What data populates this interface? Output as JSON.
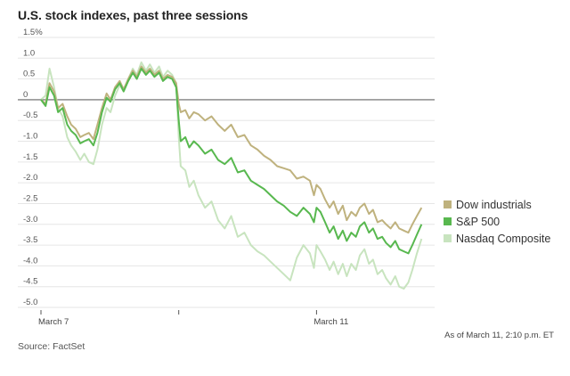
{
  "header": {
    "title": "U.S. stock indexes, past three sessions"
  },
  "footer": {
    "as_of": "As of March 11, 2:10 p.m. ET",
    "source": "Source: FactSet"
  },
  "chart_data": {
    "type": "line",
    "title": "U.S. stock indexes, past three sessions",
    "xlabel": "",
    "ylabel": "",
    "ylim": [
      -5.0,
      1.5
    ],
    "yticks": [
      1.5,
      1.0,
      0.5,
      0,
      -0.5,
      -1.0,
      -1.5,
      -2.0,
      -2.5,
      -3.0,
      -3.5,
      -4.0,
      -4.5,
      -5.0
    ],
    "ytick_labels": [
      "1.5%",
      "1.0",
      "0.5",
      "0",
      "-0.5",
      "-1.0",
      "-1.5",
      "-2.0",
      "-2.5",
      "-3.0",
      "-3.5",
      "-4.0",
      "-4.5",
      "-5.0"
    ],
    "xlim": [
      0,
      60
    ],
    "xticks": [
      {
        "x": 0,
        "label": "March 7"
      },
      {
        "x": 21,
        "label": ""
      },
      {
        "x": 42,
        "label": "March 11"
      }
    ],
    "zero_line": true,
    "grid": "horizontal",
    "legend": "right",
    "series": [
      {
        "name": "Dow industrials",
        "color": "#bfb27e",
        "x": [
          0,
          0.7,
          1.3,
          2,
          2.6,
          3.3,
          4,
          4.6,
          5.3,
          6,
          6.6,
          7.3,
          8,
          8.6,
          9.3,
          10,
          10.6,
          11.3,
          12,
          12.6,
          13.3,
          14,
          14.6,
          15.3,
          16,
          16.6,
          17.3,
          18,
          18.6,
          19.3,
          20,
          20.6,
          21,
          21.3,
          22,
          22.6,
          23.3,
          24,
          25,
          26,
          27,
          28,
          29,
          30,
          31,
          32,
          33,
          34,
          35,
          36,
          37,
          38,
          39,
          40,
          41,
          41.6,
          42,
          42.6,
          43.3,
          44,
          44.6,
          45.3,
          46,
          46.6,
          47.3,
          48,
          48.6,
          49.3,
          50,
          50.6,
          51.3,
          52,
          52.6,
          53.3,
          54,
          54.6,
          55.3,
          56,
          56.6,
          57.3,
          58
        ],
        "y": [
          0,
          -0.1,
          0.4,
          0.2,
          -0.2,
          -0.1,
          -0.4,
          -0.6,
          -0.7,
          -0.9,
          -0.85,
          -0.8,
          -0.95,
          -0.6,
          -0.2,
          0.15,
          0.0,
          0.3,
          0.45,
          0.25,
          0.5,
          0.7,
          0.55,
          0.8,
          0.65,
          0.75,
          0.6,
          0.7,
          0.5,
          0.6,
          0.55,
          0.4,
          -0.1,
          -0.3,
          -0.25,
          -0.45,
          -0.3,
          -0.35,
          -0.5,
          -0.4,
          -0.6,
          -0.75,
          -0.6,
          -0.9,
          -0.85,
          -1.1,
          -1.2,
          -1.35,
          -1.45,
          -1.6,
          -1.65,
          -1.7,
          -1.9,
          -1.85,
          -1.95,
          -2.3,
          -2.05,
          -2.15,
          -2.4,
          -2.6,
          -2.45,
          -2.75,
          -2.55,
          -2.9,
          -2.7,
          -2.8,
          -2.6,
          -2.5,
          -2.75,
          -2.65,
          -2.95,
          -2.9,
          -3.0,
          -3.1,
          -2.95,
          -3.1,
          -3.15,
          -3.2,
          -3.0,
          -2.8,
          -2.6
        ]
      },
      {
        "name": "S&P 500",
        "color": "#58b84f",
        "x": [
          0,
          0.7,
          1.3,
          2,
          2.6,
          3.3,
          4,
          4.6,
          5.3,
          6,
          6.6,
          7.3,
          8,
          8.6,
          9.3,
          10,
          10.6,
          11.3,
          12,
          12.6,
          13.3,
          14,
          14.6,
          15.3,
          16,
          16.6,
          17.3,
          18,
          18.6,
          19.3,
          20,
          20.6,
          21,
          21.3,
          22,
          22.6,
          23.3,
          24,
          25,
          26,
          27,
          28,
          29,
          30,
          31,
          32,
          33,
          34,
          35,
          36,
          37,
          38,
          39,
          40,
          41,
          41.6,
          42,
          42.6,
          43.3,
          44,
          44.6,
          45.3,
          46,
          46.6,
          47.3,
          48,
          48.6,
          49.3,
          50,
          50.6,
          51.3,
          52,
          52.6,
          53.3,
          54,
          54.6,
          55.3,
          56,
          56.6,
          57.3,
          58
        ],
        "y": [
          0,
          -0.15,
          0.3,
          0.1,
          -0.3,
          -0.2,
          -0.6,
          -0.75,
          -0.85,
          -1.05,
          -1.0,
          -0.95,
          -1.1,
          -0.8,
          -0.3,
          0.05,
          -0.05,
          0.25,
          0.4,
          0.2,
          0.45,
          0.65,
          0.5,
          0.75,
          0.6,
          0.7,
          0.55,
          0.65,
          0.45,
          0.55,
          0.5,
          0.3,
          -0.5,
          -1.0,
          -0.9,
          -1.15,
          -1.0,
          -1.1,
          -1.3,
          -1.2,
          -1.45,
          -1.55,
          -1.4,
          -1.75,
          -1.7,
          -1.95,
          -2.05,
          -2.15,
          -2.3,
          -2.45,
          -2.55,
          -2.7,
          -2.8,
          -2.6,
          -2.75,
          -2.95,
          -2.6,
          -2.7,
          -2.95,
          -3.2,
          -3.05,
          -3.35,
          -3.15,
          -3.4,
          -3.2,
          -3.3,
          -3.05,
          -2.95,
          -3.2,
          -3.1,
          -3.35,
          -3.3,
          -3.45,
          -3.55,
          -3.4,
          -3.6,
          -3.65,
          -3.7,
          -3.5,
          -3.25,
          -3.0
        ]
      },
      {
        "name": "Nasdaq Composite",
        "color": "#c8e4bf",
        "x": [
          0,
          0.7,
          1.3,
          2,
          2.6,
          3.3,
          4,
          4.6,
          5.3,
          6,
          6.6,
          7.3,
          8,
          8.6,
          9.3,
          10,
          10.6,
          11.3,
          12,
          12.6,
          13.3,
          14,
          14.6,
          15.3,
          16,
          16.6,
          17.3,
          18,
          18.6,
          19.3,
          20,
          20.6,
          21,
          21.3,
          22,
          22.6,
          23.3,
          24,
          25,
          26,
          27,
          28,
          29,
          30,
          31,
          32,
          33,
          34,
          35,
          36,
          37,
          38,
          39,
          40,
          41,
          41.6,
          42,
          42.6,
          43.3,
          44,
          44.6,
          45.3,
          46,
          46.6,
          47.3,
          48,
          48.6,
          49.3,
          50,
          50.6,
          51.3,
          52,
          52.6,
          53.3,
          54,
          54.6,
          55.3,
          56,
          56.6,
          57.3,
          58
        ],
        "y": [
          0,
          0.1,
          0.75,
          0.3,
          -0.2,
          -0.4,
          -0.9,
          -1.1,
          -1.25,
          -1.45,
          -1.3,
          -1.5,
          -1.55,
          -1.2,
          -0.6,
          -0.2,
          -0.3,
          0.1,
          0.35,
          0.2,
          0.5,
          0.75,
          0.6,
          0.9,
          0.7,
          0.85,
          0.65,
          0.8,
          0.55,
          0.7,
          0.6,
          0.4,
          -0.9,
          -1.6,
          -1.7,
          -2.1,
          -1.95,
          -2.3,
          -2.6,
          -2.45,
          -2.9,
          -3.1,
          -2.8,
          -3.3,
          -3.2,
          -3.5,
          -3.65,
          -3.75,
          -3.9,
          -4.05,
          -4.2,
          -4.35,
          -3.8,
          -3.5,
          -3.7,
          -4.05,
          -3.5,
          -3.65,
          -3.85,
          -4.1,
          -3.9,
          -4.2,
          -3.95,
          -4.25,
          -3.95,
          -4.1,
          -3.75,
          -3.6,
          -3.95,
          -3.85,
          -4.2,
          -4.1,
          -4.3,
          -4.45,
          -4.25,
          -4.5,
          -4.55,
          -4.4,
          -4.1,
          -3.7,
          -3.35
        ]
      }
    ]
  }
}
